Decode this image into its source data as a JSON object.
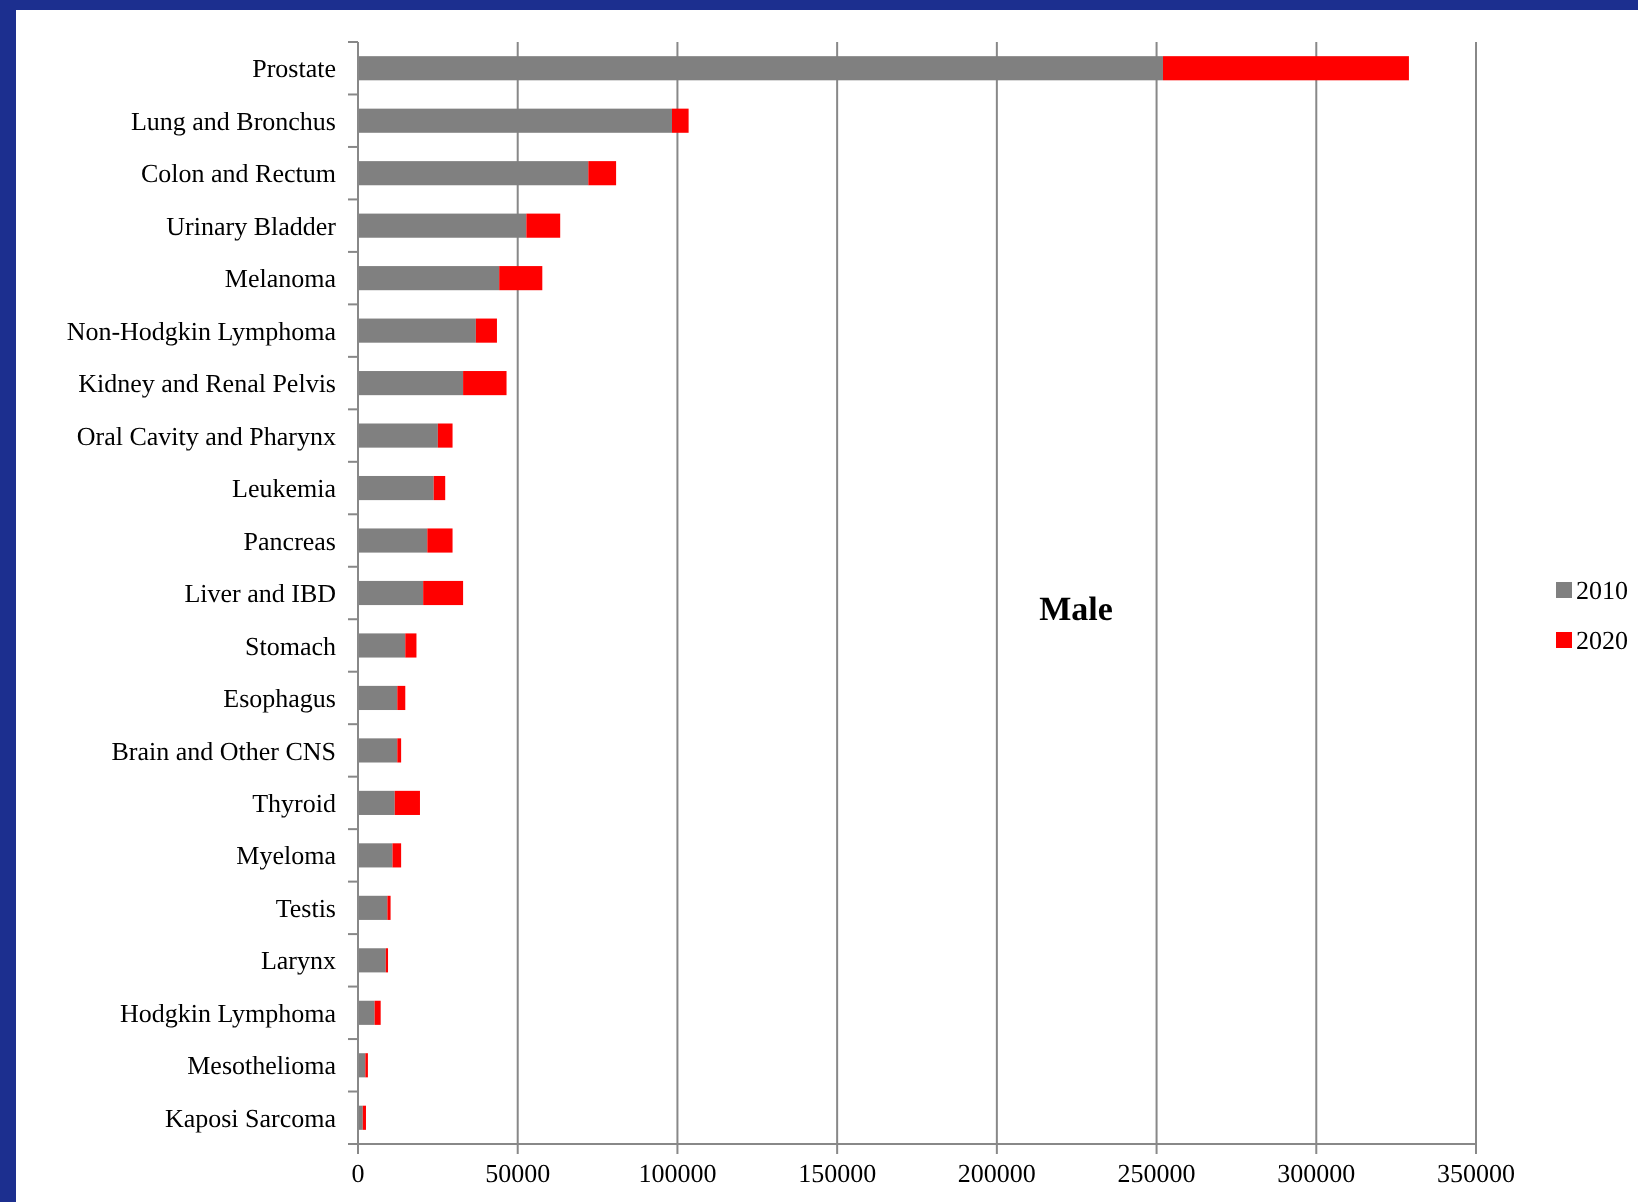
{
  "chart_data": {
    "type": "bar",
    "orientation": "horizontal",
    "stacked": true,
    "annotations": [
      "Male"
    ],
    "categories": [
      "Prostate",
      "Lung and Bronchus",
      "Colon and Rectum",
      "Urinary Bladder",
      "Melanoma",
      "Non-Hodgkin Lymphoma",
      "Kidney and Renal Pelvis",
      "Oral Cavity and Pharynx",
      "Leukemia",
      "Pancreas",
      "Liver and IBD",
      "Stomach",
      "Esophagus",
      "Brain and Other CNS",
      "Thyroid",
      "Myeloma",
      "Testis",
      "Larynx",
      "Hodgkin Lymphoma",
      "Mesothelioma",
      "Kaposi Sarcoma"
    ],
    "series": [
      {
        "name": "2010",
        "color": "#808080",
        "values": [
          252000,
          98300,
          72100,
          52700,
          44200,
          36900,
          32900,
          25000,
          23700,
          21700,
          20400,
          14800,
          12300,
          12300,
          11500,
          10800,
          9200,
          8700,
          5200,
          2300,
          1500
        ]
      },
      {
        "name": "2020",
        "color": "#ff0000",
        "values": [
          77000,
          5200,
          8700,
          10600,
          13500,
          6600,
          13600,
          4600,
          3600,
          7900,
          12500,
          3500,
          2500,
          1200,
          7900,
          2700,
          1000,
          700,
          1900,
          800,
          1000
        ]
      }
    ],
    "xlim": [
      0,
      350000
    ],
    "xticks": [
      0,
      50000,
      100000,
      150000,
      200000,
      250000,
      300000,
      350000
    ],
    "grid": "x",
    "legend": "right"
  }
}
